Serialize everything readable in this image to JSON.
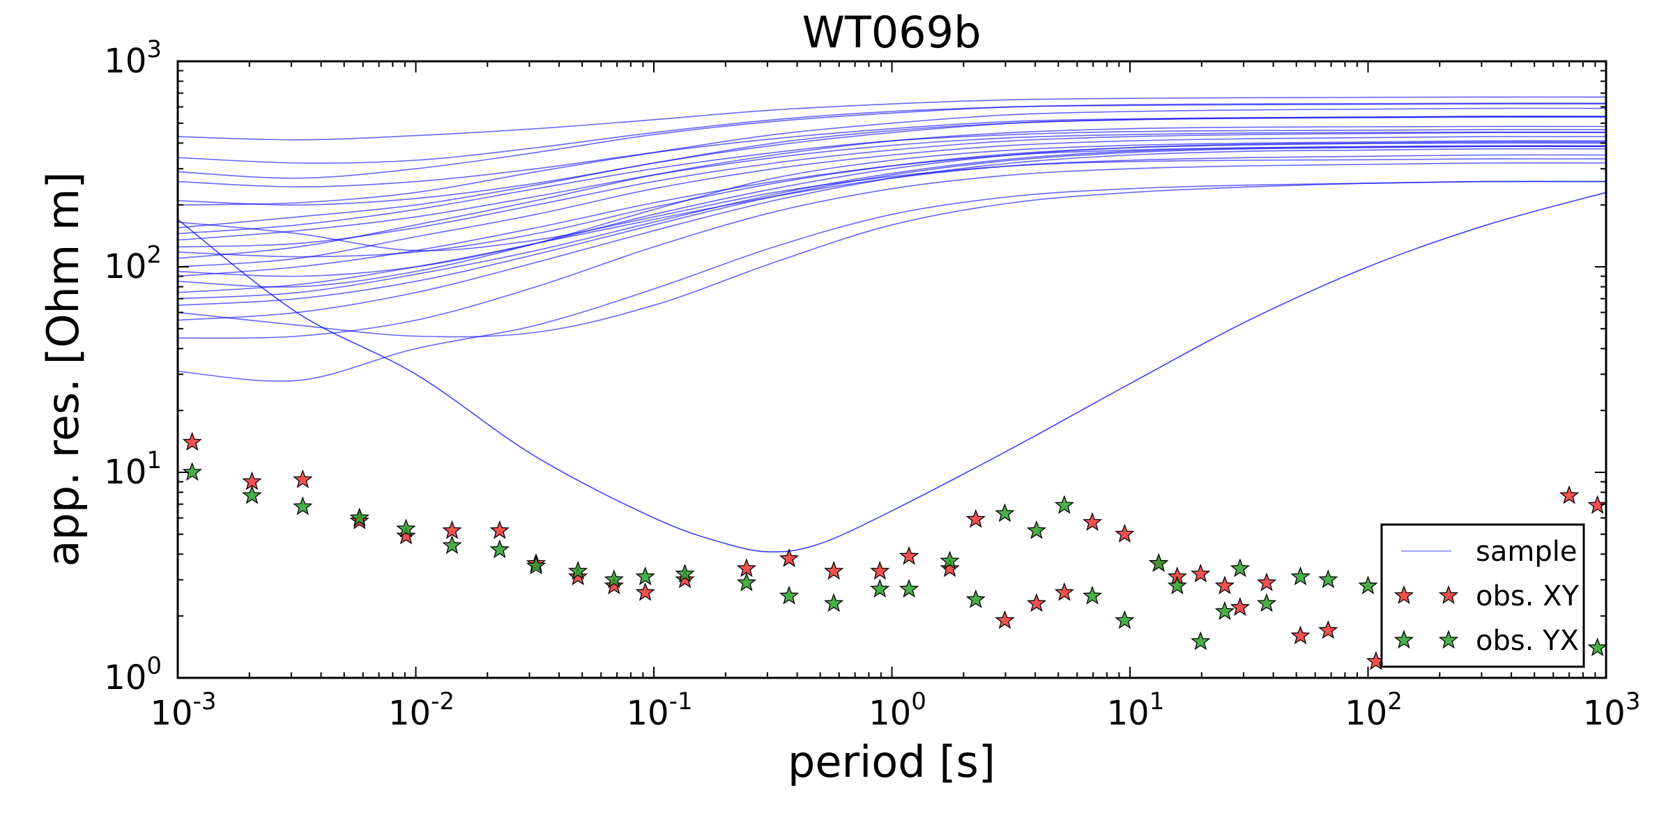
{
  "chart_data": {
    "type": "scatter",
    "title": "WT069b",
    "xlabel": "period [s]",
    "ylabel": "app. res. [Ohm m]",
    "xscale": "log",
    "yscale": "log",
    "xlim": [
      0.001,
      1000
    ],
    "ylim": [
      1,
      1000
    ],
    "grid": false,
    "legend_position": "bottom-right",
    "x_tick_labels": [
      {
        "base": "10",
        "exp": "-3"
      },
      {
        "base": "10",
        "exp": "-2"
      },
      {
        "base": "10",
        "exp": "-1"
      },
      {
        "base": "10",
        "exp": "0"
      },
      {
        "base": "10",
        "exp": "1"
      },
      {
        "base": "10",
        "exp": "2"
      },
      {
        "base": "10",
        "exp": "3"
      }
    ],
    "y_tick_labels": [
      {
        "base": "10",
        "exp": "0"
      },
      {
        "base": "10",
        "exp": "1"
      },
      {
        "base": "10",
        "exp": "2"
      },
      {
        "base": "10",
        "exp": "3"
      }
    ],
    "legend": [
      {
        "label": "sample",
        "kind": "line",
        "color": "#0000ff"
      },
      {
        "label": "obs. XY",
        "kind": "star",
        "color": "#ee3333"
      },
      {
        "label": "obs. YX",
        "kind": "star",
        "color": "#2ca02c"
      }
    ],
    "sample_curves": {
      "name": "sample",
      "color": "#0000ff",
      "x": [
        0.001,
        0.0032,
        0.01,
        0.032,
        0.1,
        0.32,
        1,
        3.2,
        10,
        32,
        100,
        316,
        1000
      ],
      "curves": [
        [
          430,
          415,
          435,
          470,
          520,
          580,
          620,
          650,
          660,
          665,
          668,
          670,
          670
        ],
        [
          290,
          270,
          300,
          360,
          440,
          510,
          560,
          600,
          610,
          615,
          618,
          620,
          620
        ],
        [
          200,
          205,
          230,
          290,
          360,
          440,
          500,
          550,
          570,
          580,
          585,
          590,
          590
        ],
        [
          155,
          175,
          200,
          250,
          320,
          390,
          450,
          500,
          520,
          530,
          535,
          540,
          540
        ],
        [
          125,
          130,
          155,
          200,
          260,
          320,
          370,
          410,
          430,
          440,
          445,
          450,
          450
        ],
        [
          100,
          110,
          140,
          180,
          240,
          300,
          350,
          390,
          410,
          420,
          425,
          430,
          430
        ],
        [
          95,
          90,
          100,
          130,
          180,
          240,
          300,
          350,
          380,
          395,
          400,
          405,
          405
        ],
        [
          85,
          80,
          95,
          130,
          190,
          270,
          330,
          370,
          390,
          400,
          405,
          410,
          410
        ],
        [
          75,
          82,
          100,
          130,
          170,
          220,
          270,
          310,
          330,
          340,
          345,
          350,
          350
        ],
        [
          65,
          70,
          85,
          115,
          160,
          220,
          280,
          330,
          360,
          375,
          380,
          385,
          385
        ],
        [
          55,
          60,
          75,
          105,
          150,
          210,
          270,
          320,
          350,
          365,
          370,
          375,
          375
        ],
        [
          45,
          46,
          55,
          80,
          125,
          185,
          240,
          280,
          300,
          310,
          315,
          320,
          320
        ],
        [
          31,
          28,
          40,
          52,
          78,
          125,
          180,
          220,
          240,
          250,
          255,
          260,
          260
        ],
        [
          60,
          52,
          46,
          48,
          65,
          105,
          160,
          205,
          230,
          245,
          255,
          260,
          260
        ],
        [
          165,
          145,
          120,
          135,
          175,
          230,
          275,
          310,
          325,
          330,
          332,
          335,
          335
        ],
        [
          110,
          125,
          160,
          210,
          280,
          350,
          410,
          450,
          470,
          478,
          480,
          482,
          482
        ],
        [
          145,
          160,
          190,
          240,
          300,
          360,
          410,
          440,
          455,
          460,
          462,
          465,
          465
        ],
        [
          135,
          150,
          175,
          220,
          280,
          340,
          390,
          425,
          440,
          448,
          450,
          452,
          452
        ],
        [
          90,
          100,
          120,
          155,
          205,
          260,
          310,
          350,
          370,
          380,
          385,
          388,
          388
        ],
        [
          70,
          75,
          92,
          120,
          165,
          225,
          285,
          335,
          365,
          378,
          383,
          386,
          386
        ],
        [
          210,
          200,
          215,
          255,
          320,
          400,
          460,
          500,
          520,
          528,
          532,
          535,
          535
        ],
        [
          340,
          320,
          330,
          380,
          450,
          520,
          570,
          600,
          615,
          620,
          622,
          625,
          625
        ],
        [
          260,
          245,
          260,
          300,
          360,
          420,
          470,
          510,
          525,
          532,
          535,
          538,
          538
        ],
        [
          118,
          112,
          118,
          145,
          195,
          255,
          310,
          355,
          380,
          392,
          398,
          400,
          400
        ]
      ],
      "outlier_curve": {
        "x": [
          0.001,
          0.00316,
          0.01,
          0.0316,
          0.1,
          0.2,
          0.316,
          0.5,
          1,
          3.16,
          10,
          31.6,
          100,
          316,
          1000
        ],
        "y": [
          170,
          60,
          30,
          12,
          6,
          4.5,
          4.1,
          4.5,
          6.5,
          13,
          27,
          55,
          100,
          160,
          230
        ]
      }
    },
    "series": [
      {
        "name": "obs. XY",
        "color": "#ee3333",
        "x": [
          0.00115,
          0.00205,
          0.00335,
          0.0058,
          0.0091,
          0.0142,
          0.0225,
          0.032,
          0.048,
          0.068,
          0.092,
          0.135,
          0.245,
          0.37,
          0.57,
          0.89,
          1.18,
          1.75,
          2.25,
          2.98,
          4.05,
          5.3,
          6.95,
          9.5,
          13.2,
          15.8,
          19.8,
          25,
          29,
          37.5,
          52,
          68,
          108,
          700,
          920
        ],
        "y": [
          14,
          9,
          9.2,
          5.8,
          4.9,
          5.2,
          5.2,
          3.6,
          3.1,
          2.8,
          2.6,
          3.0,
          3.4,
          3.8,
          3.3,
          3.3,
          3.9,
          3.4,
          5.9,
          1.9,
          2.3,
          2.6,
          5.7,
          5.0,
          3.6,
          3.1,
          3.2,
          2.8,
          2.2,
          2.9,
          1.6,
          1.7,
          1.2,
          7.7,
          6.9
        ]
      },
      {
        "name": "obs. YX",
        "color": "#2ca02c",
        "x": [
          0.00115,
          0.00205,
          0.00335,
          0.0058,
          0.0091,
          0.0142,
          0.0225,
          0.032,
          0.048,
          0.068,
          0.092,
          0.135,
          0.245,
          0.37,
          0.57,
          0.89,
          1.18,
          1.75,
          2.25,
          2.98,
          4.05,
          5.3,
          6.95,
          9.5,
          13.2,
          15.8,
          19.8,
          25,
          29,
          37.5,
          52,
          68,
          100,
          920
        ],
        "y": [
          10,
          7.7,
          6.8,
          6.0,
          5.3,
          4.4,
          4.2,
          3.5,
          3.3,
          3.0,
          3.1,
          3.2,
          2.9,
          2.5,
          2.3,
          2.7,
          2.7,
          3.7,
          2.4,
          6.3,
          5.2,
          6.9,
          2.5,
          1.9,
          3.6,
          2.8,
          1.5,
          2.1,
          3.4,
          2.3,
          3.1,
          3.0,
          2.8,
          1.4
        ]
      }
    ]
  }
}
